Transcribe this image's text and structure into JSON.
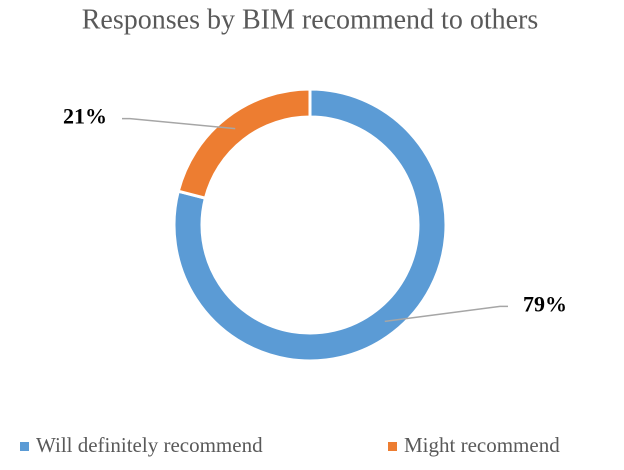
{
  "chart_data": {
    "type": "donut",
    "title": "Responses by BIM recommend to others",
    "categories": [
      "Will definitely recommend",
      "Might recommend"
    ],
    "values": [
      79,
      21
    ],
    "value_labels": [
      "79%",
      "21%"
    ],
    "colors": [
      "#5b9bd5",
      "#ed7d31"
    ],
    "legend": "bottom"
  }
}
